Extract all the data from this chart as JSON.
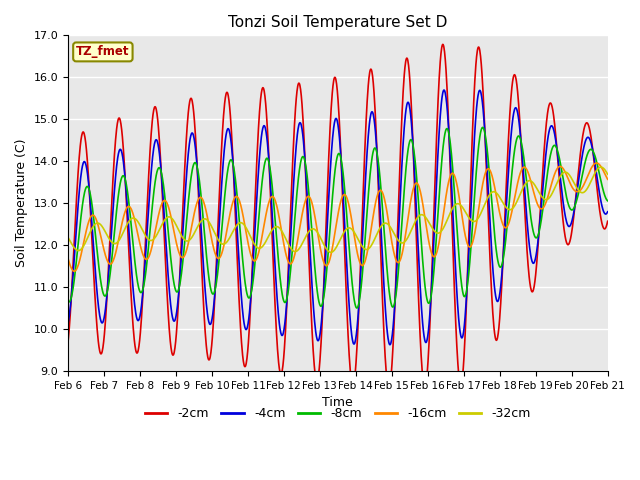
{
  "title": "Tonzi Soil Temperature Set D",
  "ylabel": "Soil Temperature (C)",
  "xlabel": "Time",
  "ylim": [
    9.0,
    17.0
  ],
  "yticks": [
    9.0,
    10.0,
    11.0,
    12.0,
    13.0,
    14.0,
    15.0,
    16.0,
    17.0
  ],
  "annotation": "TZ_fmet",
  "legend_labels": [
    "-2cm",
    "-4cm",
    "-8cm",
    "-16cm",
    "-32cm"
  ],
  "line_colors": [
    "#dd0000",
    "#0000dd",
    "#00bb00",
    "#ff8800",
    "#cccc00"
  ],
  "bg_color": "#ffffff",
  "plot_bg_color": "#e8e8e8",
  "xtick_labels": [
    "Feb 6",
    "Feb 7",
    "Feb 8",
    "Feb 9",
    "Feb 10",
    "Feb 11",
    "Feb 12",
    "Feb 13",
    "Feb 14",
    "Feb 15",
    "Feb 16",
    "Feb 17",
    "Feb 18",
    "Feb 19",
    "Feb 20",
    "Feb 21"
  ],
  "n_points": 1500,
  "days": 15
}
